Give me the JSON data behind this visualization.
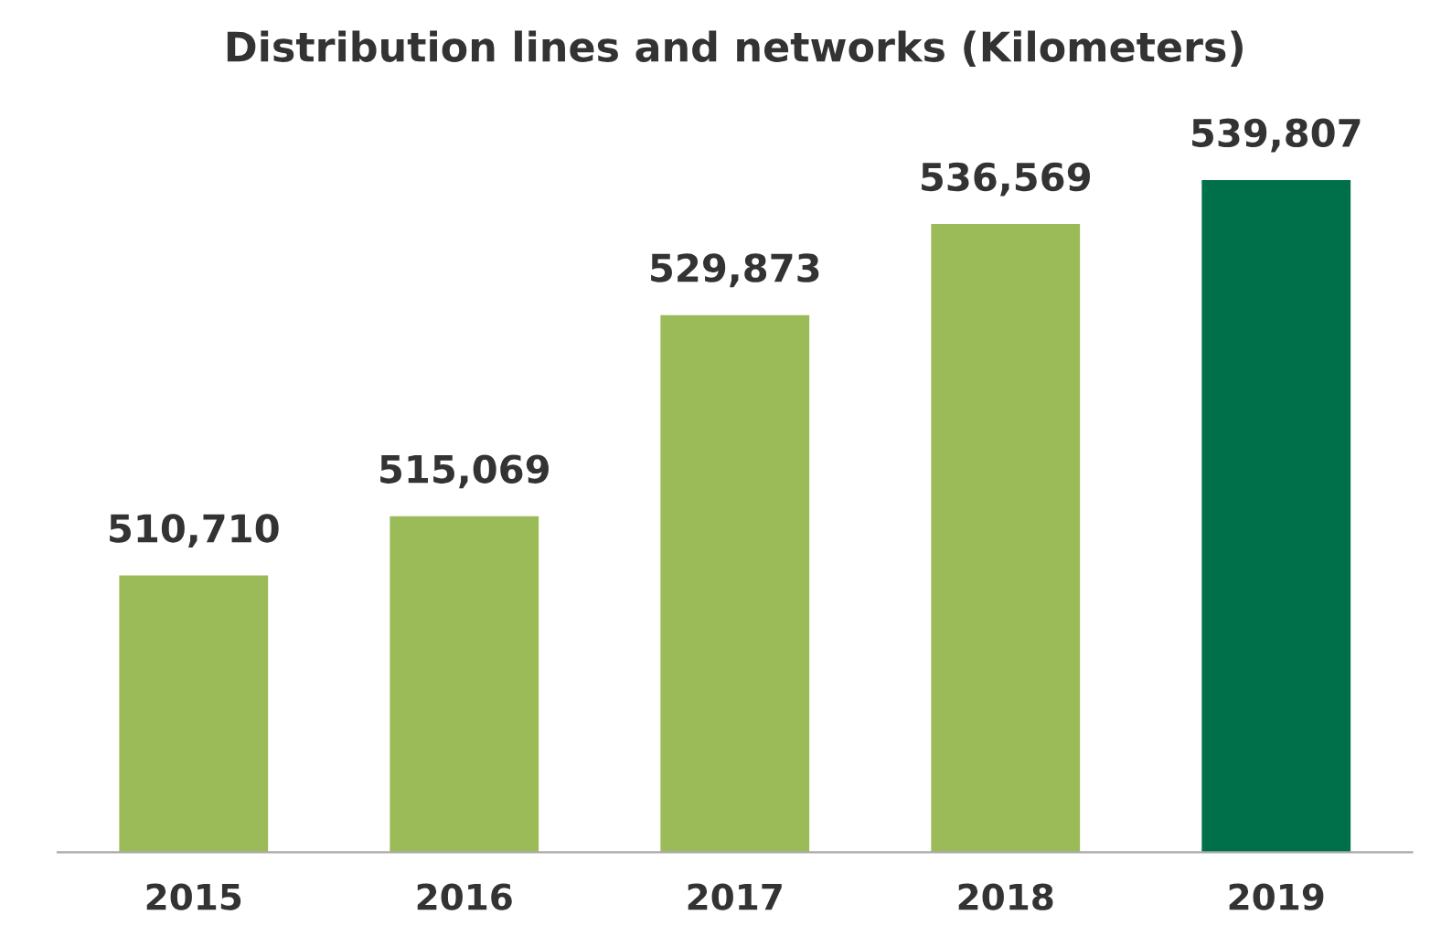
{
  "chart_data": {
    "type": "bar",
    "title": "Distribution lines and networks (Kilometers)",
    "categories": [
      "2015",
      "2016",
      "2017",
      "2018",
      "2019"
    ],
    "values": [
      510710,
      515069,
      529873,
      536569,
      539807
    ],
    "colors": [
      "#9bbb59",
      "#9bbb59",
      "#9bbb59",
      "#9bbb59",
      "#00704a"
    ],
    "value_labels": [
      "510,710",
      "515,069",
      "529,873",
      "536,569",
      "539,807"
    ],
    "tick_labels": "x",
    "grid": false,
    "legend": false
  }
}
